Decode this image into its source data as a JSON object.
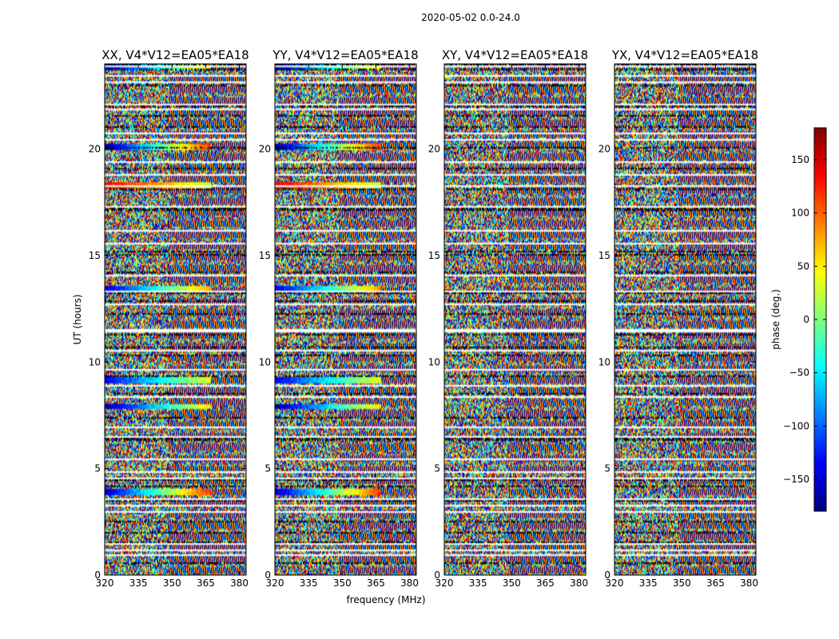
{
  "chart_data": {
    "type": "heatmap",
    "suptitle": "2020-05-02 0.0-24.0",
    "xlabel": "frequency (MHz)",
    "ylabel": "UT (hours)",
    "xlim": [
      320,
      383
    ],
    "ylim": [
      0,
      24
    ],
    "xticks": [
      320,
      335,
      350,
      365,
      380
    ],
    "yticks": [
      0,
      5,
      10,
      15,
      20
    ],
    "panels": [
      {
        "title": "XX, V4*V12=EA05*EA18",
        "pol": "XX"
      },
      {
        "title": "YY, V4*V12=EA05*EA18",
        "pol": "YY"
      },
      {
        "title": "XY, V4*V12=EA05*EA18",
        "pol": "XY"
      },
      {
        "title": "YX, V4*V12=EA05*EA18",
        "pol": "YX"
      }
    ],
    "colorbar": {
      "label": "phase (deg.)",
      "colormap": "jet",
      "range": [
        -180,
        180
      ],
      "ticks": [
        150,
        100,
        50,
        0,
        -50,
        -100,
        -150
      ],
      "tick_labels": [
        "150",
        "100",
        "50",
        "0",
        "−50",
        "−100",
        "−150"
      ]
    },
    "gaps_ut": [
      0.9,
      1.15,
      1.45,
      2.9,
      3.2,
      3.55,
      4.55,
      4.85,
      5.45,
      6.5,
      6.9,
      8.35,
      8.85,
      9.6,
      10.5,
      11.4,
      11.5,
      12.7,
      13.35,
      14.1,
      15.55,
      16.2,
      17.3,
      18.3,
      18.8,
      19.4,
      20.5,
      20.8,
      21.9,
      22.1,
      23.15,
      23.45,
      23.9
    ],
    "coherent_bands": [
      {
        "ut": 3.85,
        "polarizations": [
          "XX",
          "YY"
        ],
        "phase_start": -160,
        "phase_end": 120
      },
      {
        "ut": 7.9,
        "polarizations": [
          "XX",
          "YY"
        ],
        "phase_start": -170,
        "phase_end": 60
      },
      {
        "ut": 9.15,
        "polarizations": [
          "XX",
          "YY"
        ],
        "phase_start": -140,
        "phase_end": 40
      },
      {
        "ut": 13.4,
        "polarizations": [
          "XX",
          "YY"
        ],
        "phase_start": -150,
        "phase_end": 80
      },
      {
        "ut": 18.3,
        "polarizations": [
          "XX",
          "YY"
        ],
        "phase_start": 140,
        "phase_end": 20
      },
      {
        "ut": 20.1,
        "polarizations": [
          "XX",
          "YY"
        ],
        "phase_start": -170,
        "phase_end": 120
      },
      {
        "ut": 23.9,
        "polarizations": [
          "XX",
          "YY"
        ],
        "phase_start": -150,
        "phase_end": 60
      }
    ]
  }
}
